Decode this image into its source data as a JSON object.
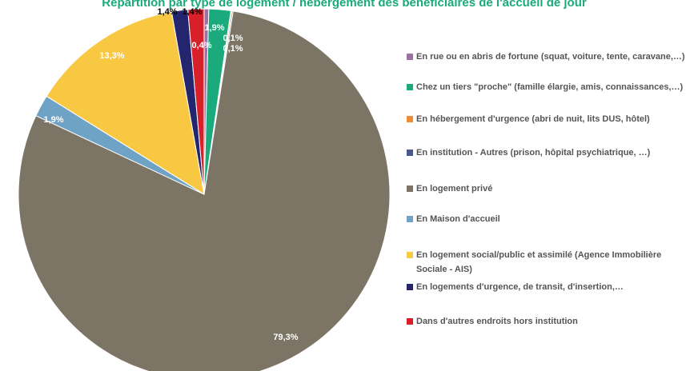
{
  "chart_data": {
    "type": "pie",
    "title": "Répartition par type de logement / hébergement des bénéficiaires de l'accueil de jour",
    "categories": [
      "En rue ou en abris de fortune  (squat, voiture, tente, caravane,…)",
      "Chez un tiers \"proche\" (famille élargie, amis, connaissances,…)",
      "En hébergement d'urgence (abri de nuit, lits DUS, hôtel)",
      "En institution - Autres (prison, hôpital psychiatrique, …)",
      "En logement privé",
      "En Maison d'accueil",
      "En logement social/public et assimilé (Agence Immobilière Sociale - AIS)",
      "En logements d'urgence, de transit, d'insertion,…",
      "Dans d'autres endroits hors institution"
    ],
    "values": [
      0.4,
      1.9,
      0.1,
      0.1,
      79.3,
      1.9,
      13.3,
      1.4,
      1.4
    ],
    "value_labels": [
      "0,4%",
      "1,9%",
      "0,1%",
      "0,1%",
      "79,3%",
      "1,9%",
      "13,3%",
      "1,4%",
      "1,4%"
    ],
    "colors": [
      "#9b72a8",
      "#1aaa7c",
      "#f08a33",
      "#4a5a8a",
      "#7c7565",
      "#6fa3c6",
      "#f9c842",
      "#23256e",
      "#d8202a"
    ]
  }
}
